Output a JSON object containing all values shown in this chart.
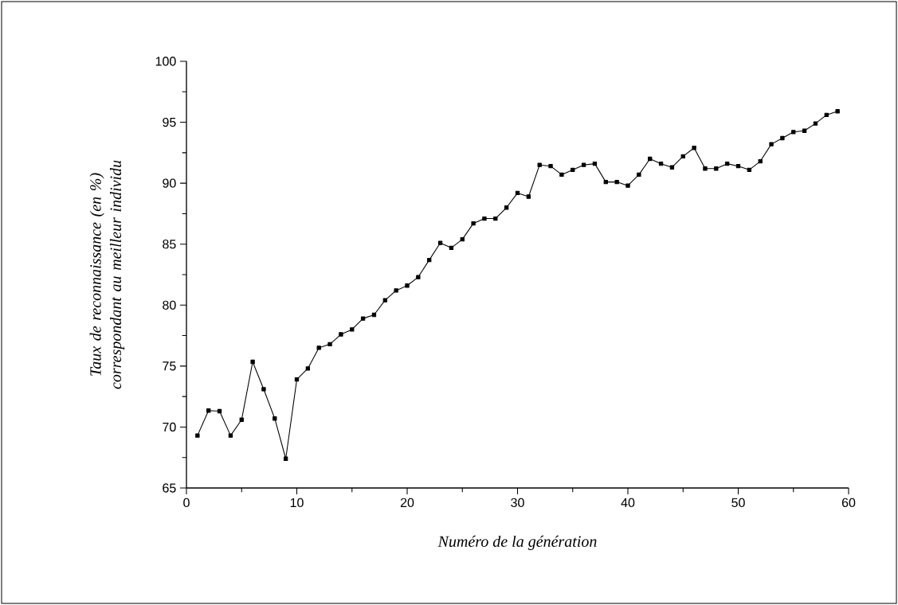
{
  "chart_data": {
    "type": "line",
    "xlabel": "Numéro de la génération",
    "ylabel": "Taux de reconnaissance (en %) correspondant au meilleur individu",
    "x": [
      1,
      2,
      3,
      4,
      5,
      6,
      7,
      8,
      9,
      10,
      11,
      12,
      13,
      14,
      15,
      16,
      17,
      18,
      19,
      20,
      21,
      22,
      23,
      24,
      25,
      26,
      27,
      28,
      29,
      30,
      31,
      32,
      33,
      34,
      35,
      36,
      37,
      38,
      39,
      40,
      41,
      42,
      43,
      44,
      45,
      46,
      47,
      48,
      49,
      50,
      51,
      52,
      53,
      54,
      55,
      56,
      57,
      58,
      59
    ],
    "values": [
      69.3,
      71.35,
      71.3,
      69.3,
      70.6,
      75.35,
      73.1,
      70.7,
      67.4,
      73.9,
      74.8,
      76.5,
      76.8,
      77.6,
      78.0,
      78.9,
      79.2,
      80.4,
      81.2,
      81.6,
      82.3,
      83.7,
      85.1,
      84.7,
      85.4,
      86.7,
      87.1,
      87.1,
      88.0,
      89.2,
      88.9,
      91.5,
      91.4,
      90.7,
      91.1,
      91.5,
      91.6,
      90.1,
      90.1,
      89.8,
      90.7,
      92.0,
      91.6,
      91.3,
      92.2,
      92.9,
      91.2,
      91.2,
      91.6,
      91.4,
      91.1,
      91.8,
      93.2,
      93.7,
      94.2,
      94.3,
      94.9,
      95.6,
      95.9
    ],
    "color": "#000000",
    "marker": "square",
    "line_style": "solid",
    "xlim": [
      0,
      60
    ],
    "xticks": [
      0,
      10,
      20,
      30,
      40,
      50,
      60
    ],
    "ylim": [
      65,
      100
    ],
    "yticks": [
      65,
      70,
      75,
      80,
      85,
      90,
      95,
      100
    ]
  }
}
